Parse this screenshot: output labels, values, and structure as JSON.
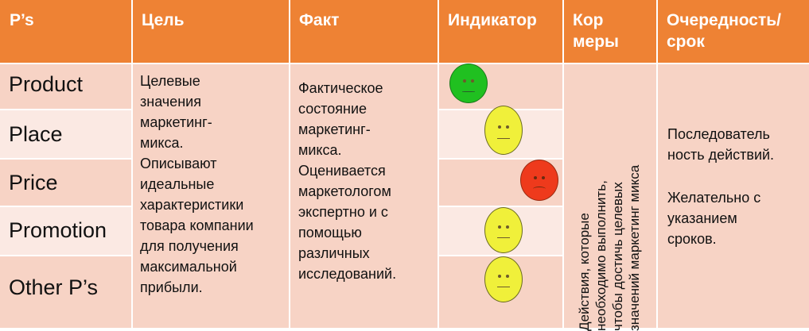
{
  "header": {
    "col1": "P’s",
    "col2": "Цель",
    "col3": "Факт",
    "col4": "Индикатор",
    "col5_line1": "Кор",
    "col5_line2": "меры",
    "col6_line1": "Очередность/",
    "col6_line2": "срок"
  },
  "rows": [
    {
      "label": "Product",
      "indicator": "green"
    },
    {
      "label": "Place",
      "indicator": "yellow"
    },
    {
      "label": "Price",
      "indicator": "red"
    },
    {
      "label": "Promotion",
      "indicator": "yellow"
    },
    {
      "label": "Other P’s",
      "indicator": "yellow"
    }
  ],
  "goal": {
    "lines": [
      "Целевые",
      "значения",
      "маркетинг-",
      "микса.",
      "Описывают",
      "идеальные",
      "характеристики",
      "товара компании",
      "для получения",
      "максимальной",
      "прибыли."
    ]
  },
  "fact": {
    "lines": [
      "Фактическое",
      "состояние",
      "маркетинг-",
      "микса.",
      "Оценивается",
      "маркетологом",
      "экспертно и с",
      "помощью",
      "различных",
      "исследований."
    ]
  },
  "measures": {
    "lines": [
      "Действия, которые",
      "необходимо выполнить,",
      "чтобы достичь целевых",
      "значений маркетинг микса"
    ]
  },
  "order": {
    "line1": "Последователь",
    "line2": "ность действий.",
    "line3": "Желательно с",
    "line4": "указанием",
    "line5": "сроков."
  },
  "colors": {
    "header": "#ee8234",
    "row_dark": "#f7d3c5",
    "row_light": "#fbe9e3",
    "green": "#20c020",
    "yellow": "#f0f03a",
    "red": "#ee3a1c"
  }
}
